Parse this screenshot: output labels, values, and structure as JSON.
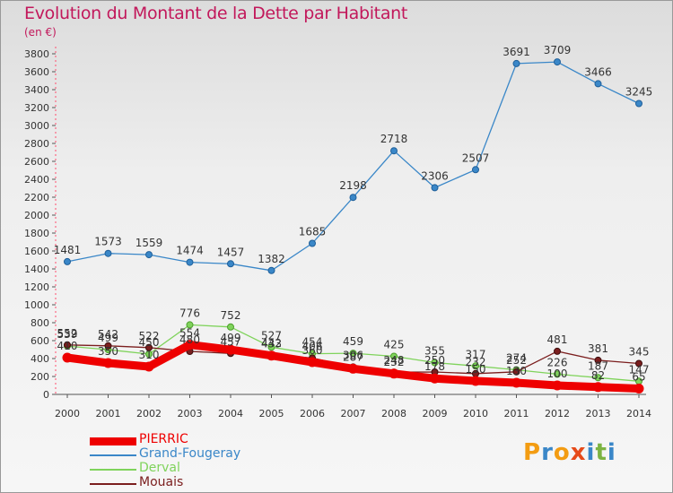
{
  "title": "Evolution du Montant de la Dette par Habitant",
  "subtitle": "(en €)",
  "logo": {
    "letters": [
      "P",
      "r",
      "o",
      "x",
      "i",
      "t",
      "i"
    ],
    "colors": [
      "#f39c12",
      "#3a87c8",
      "#f39c12",
      "#e64a19",
      "#3a87c8",
      "#7cb342",
      "#3a87c8"
    ]
  },
  "chart_data": {
    "type": "line",
    "x": [
      2000,
      2001,
      2002,
      2003,
      2004,
      2005,
      2006,
      2007,
      2008,
      2009,
      2010,
      2011,
      2012,
      2013,
      2014
    ],
    "ylim": [
      0,
      3800
    ],
    "yticks": [
      0,
      200,
      400,
      600,
      800,
      1000,
      1200,
      1400,
      1600,
      1800,
      2000,
      2200,
      2400,
      2600,
      2800,
      3000,
      3200,
      3400,
      3600,
      3800
    ],
    "grid": false,
    "legend_position": "bottom-left",
    "series": [
      {
        "name": "PIERRIC",
        "color": "#ee0000",
        "values": [
          410,
          350,
          310,
          554,
          499,
          433,
          360,
          287,
          232,
          178,
          150,
          130,
          100,
          82,
          65
        ],
        "labels": [
          "410",
          "350",
          "310",
          "554",
          "499",
          "433",
          "360",
          "287",
          "232",
          "178",
          "150",
          "130",
          "100",
          "82",
          "65"
        ]
      },
      {
        "name": "Grand-Fougeray",
        "color": "#3a87c8",
        "values": [
          1481,
          1573,
          1559,
          1474,
          1457,
          1382,
          1685,
          2198,
          2718,
          2306,
          2507,
          3691,
          3709,
          3466,
          3245
        ],
        "labels": [
          "1481",
          "1573",
          "1559",
          "1474",
          "1457",
          "1382",
          "1685",
          "2198",
          "2718",
          "2306",
          "2507",
          "3691",
          "3709",
          "3466",
          "3245"
        ]
      },
      {
        "name": "Derval",
        "color": "#7fd35b",
        "values": [
          539,
          499,
          450,
          776,
          752,
          527,
          454,
          459,
          425,
          355,
          317,
          274,
          226,
          187,
          147
        ],
        "labels": [
          "539",
          "499",
          "450",
          "776",
          "752",
          "527",
          "454",
          "459",
          "425",
          "355",
          "317",
          "274",
          "226",
          "187",
          "147"
        ]
      },
      {
        "name": "Mouais",
        "color": "#7b1e1e",
        "values": [
          552,
          542,
          522,
          480,
          457,
          442,
          406,
          306,
          248,
          250,
          232,
          252,
          481,
          381,
          345
        ],
        "labels": [
          "552",
          "542",
          "522",
          "480",
          "457",
          "442",
          "406",
          "306",
          "248",
          "250",
          "232",
          "252",
          "481",
          "381",
          "345"
        ]
      }
    ]
  }
}
